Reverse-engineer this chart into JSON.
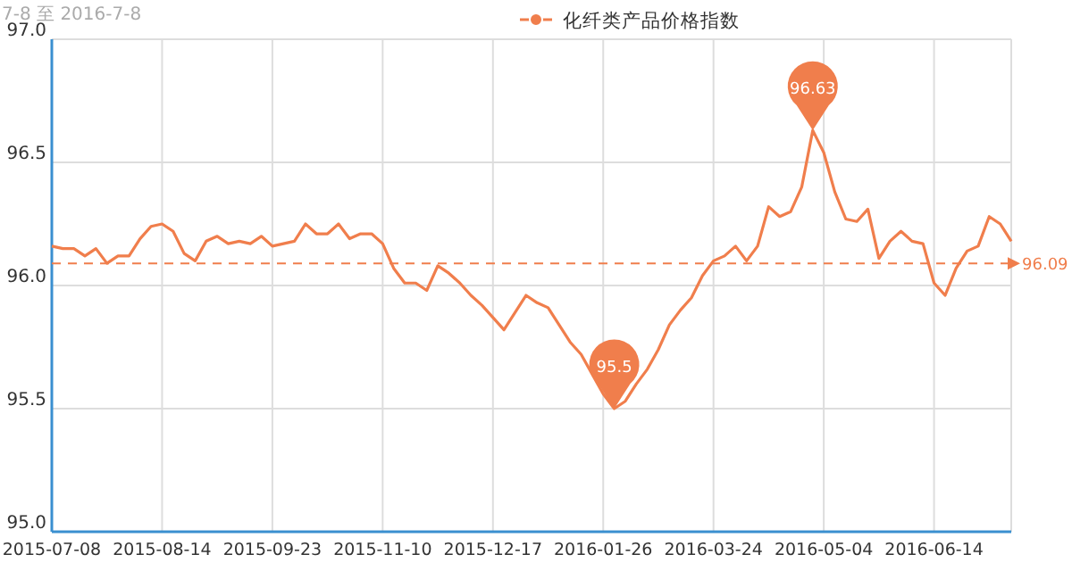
{
  "chart_data": {
    "type": "line",
    "subtitle": "7-8 至 2016-7-8",
    "categories": [
      "2015-07-08",
      null,
      null,
      null,
      null,
      null,
      null,
      null,
      null,
      null,
      "2015-08-14",
      null,
      null,
      null,
      null,
      null,
      null,
      null,
      null,
      null,
      "2015-09-23",
      null,
      null,
      null,
      null,
      null,
      null,
      null,
      null,
      null,
      "2015-11-10",
      null,
      null,
      null,
      null,
      null,
      null,
      null,
      null,
      null,
      "2015-12-17",
      null,
      null,
      null,
      null,
      null,
      null,
      null,
      null,
      null,
      "2016-01-26",
      null,
      null,
      null,
      null,
      null,
      null,
      null,
      null,
      null,
      "2016-03-24",
      null,
      null,
      null,
      null,
      null,
      null,
      null,
      null,
      null,
      "2016-05-04",
      null,
      null,
      null,
      null,
      null,
      null,
      null,
      null,
      null,
      "2016-06-14",
      null,
      null,
      null,
      null,
      null,
      null,
      null
    ],
    "series": [
      {
        "name": "化纤类产品价格指数",
        "color": "#f07e4c",
        "values": [
          96.16,
          96.15,
          96.15,
          96.12,
          96.15,
          96.09,
          96.12,
          96.12,
          96.19,
          96.24,
          96.25,
          96.22,
          96.13,
          96.1,
          96.18,
          96.2,
          96.17,
          96.18,
          96.17,
          96.2,
          96.16,
          96.17,
          96.18,
          96.25,
          96.21,
          96.21,
          96.25,
          96.19,
          96.21,
          96.21,
          96.17,
          96.07,
          96.01,
          96.01,
          95.98,
          96.08,
          96.05,
          96.01,
          95.96,
          95.92,
          95.87,
          95.82,
          95.89,
          95.96,
          95.93,
          95.91,
          95.84,
          95.77,
          95.72,
          95.64,
          95.56,
          95.5,
          95.53,
          95.6,
          95.66,
          95.74,
          95.84,
          95.9,
          95.95,
          96.04,
          96.1,
          96.12,
          96.16,
          96.1,
          96.16,
          96.32,
          96.28,
          96.3,
          96.4,
          96.63,
          96.54,
          96.38,
          96.27,
          96.26,
          96.31,
          96.11,
          96.18,
          96.22,
          96.18,
          96.17,
          96.01,
          95.96,
          96.07,
          96.14,
          96.16,
          96.28,
          96.25,
          96.18
        ]
      }
    ],
    "ylim": [
      95,
      97
    ],
    "yticks": [
      {
        "value": 95,
        "label": "95.0"
      },
      {
        "value": 95.5,
        "label": "95.5"
      },
      {
        "value": 96,
        "label": "96.0"
      },
      {
        "value": 96.5,
        "label": "96.5"
      },
      {
        "value": 97,
        "label": "97.0"
      }
    ],
    "grid": true,
    "legend": "top",
    "marker": "none",
    "ref_lines": [
      {
        "axis": "y",
        "value": 96.09,
        "label": "96.09",
        "color": "#f07e4c",
        "line_style": "dashed"
      }
    ],
    "annotations": [
      {
        "text": "96.63",
        "y": 96.63
      },
      {
        "text": "95.5",
        "y": 95.5
      }
    ]
  }
}
